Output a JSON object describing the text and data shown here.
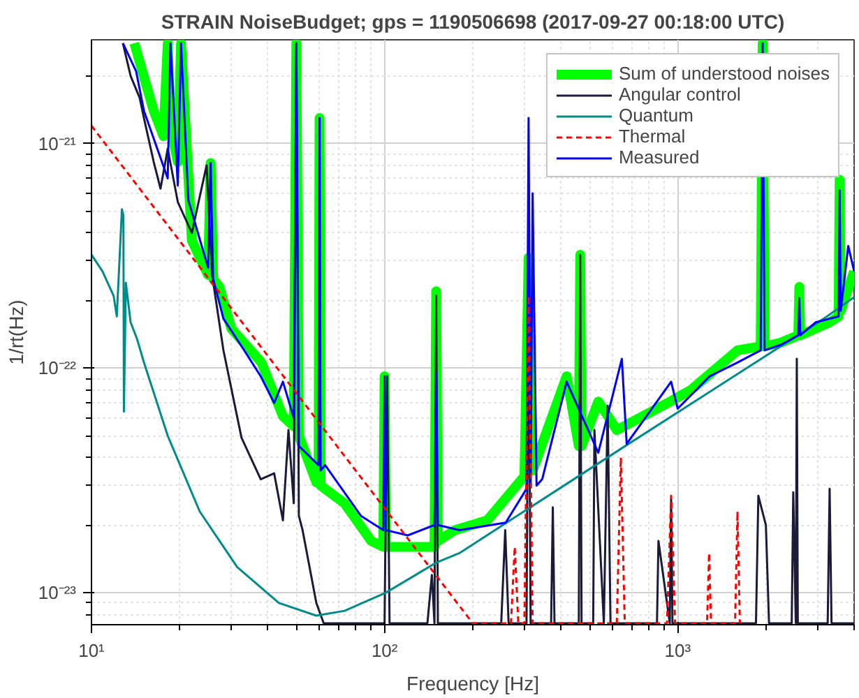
{
  "chart_data": {
    "type": "line",
    "title": "STRAIN NoiseBudget; gps = 1190506698 (2017-09-27 00:18:00 UTC)",
    "xlabel": "Frequency [Hz]",
    "ylabel": "1/rt(Hz)",
    "log": "xy",
    "grid": true,
    "legend": "top right",
    "xlim": [
      10,
      4000
    ],
    "ylim": [
      7.2e-24,
      2.9e-21
    ],
    "xticks": [
      {
        "value": 10,
        "label": "10¹"
      },
      {
        "value": 100,
        "label": "10²"
      },
      {
        "value": 1000,
        "label": "10³"
      }
    ],
    "yticks": [
      {
        "value": 1e-23,
        "label": "10⁻²³"
      },
      {
        "value": 1e-22,
        "label": "10⁻²²"
      },
      {
        "value": 1e-21,
        "label": "10⁻²¹"
      }
    ],
    "series": [
      {
        "name": "Sum of understood noises",
        "color": "#00ff00",
        "x": [
          14.0,
          16.3,
          17.6,
          18.2,
          18.6,
          19.7,
          20.2,
          22,
          25.0,
          25.5,
          26.0,
          27.3,
          30,
          38,
          45,
          49,
          50,
          51,
          58.5,
          59.5,
          60,
          60.5,
          73,
          90,
          99,
          100,
          101,
          120,
          148,
          150,
          152,
          174,
          224,
          300,
          310,
          320,
          418,
          460,
          465,
          470,
          536,
          620,
          925,
          1110,
          1600,
          1920,
          1950,
          1980,
          2250,
          2580,
          2600,
          2620,
          3300,
          3540,
          3570,
          3600,
          4000
        ],
        "values": [
          2.8e-21,
          1.4e-21,
          1.08e-21,
          2.8e-21,
          1.2e-21,
          8.3e-22,
          2.8e-21,
          3.7e-22,
          2.6e-22,
          8.2e-22,
          2.5e-22,
          2.3e-22,
          1.5e-22,
          1.06e-22,
          6.1e-23,
          5.5e-23,
          2.8e-21,
          5e-23,
          3.1e-23,
          3.1e-23,
          1.3e-21,
          3e-23,
          2.5e-23,
          1.7e-23,
          1.6e-23,
          9.2e-23,
          1.6e-23,
          1.6e-23,
          1.6e-23,
          2.2e-22,
          1.7e-23,
          1.9e-23,
          2.1e-23,
          3.3e-23,
          3.1e-22,
          3.5e-23,
          9.2e-23,
          4.5e-23,
          3.2e-22,
          4.5e-23,
          7.1e-23,
          5.3e-23,
          7e-23,
          8e-23,
          1.2e-22,
          1.25e-22,
          2.8e-21,
          1.25e-22,
          1.3e-22,
          1.4e-22,
          2.3e-22,
          1.4e-22,
          1.6e-22,
          1.7e-22,
          6.9e-22,
          1.8e-22,
          2.7e-22
        ]
      },
      {
        "name": "Angular control",
        "color": "#1a1a3a",
        "x": [
          12.8,
          13.6,
          14.6,
          15.1,
          16.3,
          17.2,
          18.2,
          19.7,
          22,
          24.7,
          25.8,
          28.2,
          32.5,
          37.8,
          42,
          45,
          47,
          49,
          50,
          51,
          52.5,
          58.5,
          62,
          100,
          102,
          104,
          140,
          145,
          148,
          150,
          152,
          250,
          258,
          265,
          305,
          310,
          315,
          370,
          375,
          380,
          460,
          465,
          470,
          515,
          520,
          560,
          577,
          590,
          850,
          860,
          940,
          950,
          960,
          1850,
          1885,
          2000,
          2050,
          2450,
          2480,
          2530,
          2550,
          2570,
          3250,
          3300,
          3350,
          4000
        ],
        "values": [
          2.8e-21,
          2e-21,
          1.6e-21,
          1.3e-21,
          8.3e-22,
          6.3e-22,
          9.5e-22,
          5.5e-22,
          4e-22,
          8e-22,
          2.6e-22,
          1.2e-22,
          4.9e-23,
          3.2e-23,
          3.4e-23,
          2.1e-23,
          5.3e-23,
          2.5e-23,
          2.8e-21,
          2.2e-23,
          1.9e-23,
          9e-24,
          7.3e-24,
          7.3e-24,
          9.2e-23,
          7.3e-24,
          7.3e-24,
          1.2e-23,
          7.3e-24,
          2.1e-22,
          7.3e-24,
          7.3e-24,
          1.9e-23,
          7.3e-24,
          7.3e-24,
          2.5e-22,
          7.3e-24,
          7.3e-24,
          2.4e-23,
          7.3e-24,
          7.3e-24,
          3.2e-22,
          7.3e-24,
          7.3e-24,
          5.3e-23,
          7.3e-24,
          6.8e-23,
          7.3e-24,
          7.3e-24,
          1.7e-23,
          7.3e-24,
          2.6e-23,
          7.3e-24,
          7.3e-24,
          2.7e-23,
          2e-23,
          7.3e-24,
          7.3e-24,
          2.8e-23,
          7.3e-24,
          1.1e-22,
          7.3e-24,
          7.3e-24,
          2.9e-23,
          7.3e-24,
          7.3e-24
        ]
      },
      {
        "name": "Quantum",
        "color": "#008b8b",
        "x": [
          10,
          10.9,
          11.9,
          12.2,
          12.7,
          12.85,
          12.9,
          13.1,
          13.6,
          14.3,
          15.1,
          18.2,
          23.4,
          31.4,
          43.6,
          58.5,
          73,
          101,
          150,
          180,
          645,
          3150,
          4000
        ],
        "values": [
          3.2e-22,
          2.7e-22,
          2.1e-22,
          1.7e-22,
          5.1e-22,
          4.8e-22,
          6.4e-23,
          2.4e-22,
          1.6e-22,
          1.35e-22,
          1.06e-22,
          5e-23,
          2.3e-23,
          1.3e-23,
          9e-24,
          7.9e-24,
          8.3e-24,
          1e-23,
          1.36e-23,
          1.5e-23,
          4.4e-23,
          1.66e-22,
          2.07e-22
        ]
      },
      {
        "name": "Thermal",
        "color": "#ff0000",
        "line_style": "dashed",
        "x": [
          10,
          200,
          270,
          278,
          286,
          300,
          310,
          320,
          620,
          640,
          660,
          920,
          950,
          980,
          1260,
          1280,
          1300,
          1570,
          1600,
          1630
        ],
        "values": [
          1.2e-21,
          7.3e-24,
          7.3e-24,
          1.6e-23,
          7.3e-24,
          7.3e-24,
          2.1e-22,
          7.3e-24,
          7.3e-24,
          4e-23,
          7.3e-24,
          7.3e-24,
          2.7e-23,
          7.3e-24,
          7.3e-24,
          1.5e-23,
          7.3e-24,
          7.3e-24,
          2.3e-23,
          7.3e-24
        ]
      },
      {
        "name": "Measured",
        "color": "#0000ff",
        "x": [
          12.8,
          14.2,
          15.1,
          18.2,
          18.6,
          19.7,
          20.2,
          21.4,
          25.0,
          25.5,
          26.0,
          28.2,
          33.2,
          37.8,
          42,
          45,
          49,
          50,
          51,
          59.5,
          60,
          60.5,
          62.7,
          83,
          99,
          100,
          101,
          120,
          148,
          150,
          152,
          180,
          259,
          305,
          310,
          315,
          320,
          330,
          345,
          418,
          536,
          645,
          670,
          950,
          1000,
          1285,
          1600,
          1920,
          1950,
          1980,
          2250,
          2580,
          2600,
          2620,
          2960,
          3540,
          3570,
          3600,
          3820,
          4000
        ],
        "values": [
          2.8e-21,
          2.1e-21,
          1.4e-21,
          7e-22,
          2.8e-21,
          6.5e-22,
          2.8e-21,
          5.6e-22,
          2.8e-22,
          8.2e-22,
          2.5e-22,
          1.66e-22,
          1.2e-22,
          9.2e-23,
          7e-23,
          8.7e-23,
          6e-23,
          2.8e-21,
          4.5e-23,
          3.7e-23,
          1.3e-21,
          3.5e-23,
          3.7e-23,
          2.2e-23,
          1.9e-23,
          9.2e-23,
          1.9e-23,
          1.8e-23,
          2e-23,
          9.5e-23,
          2e-23,
          1.9e-23,
          2.05e-23,
          2.9e-23,
          1.3e-21,
          3e-23,
          6e-22,
          3e-23,
          3.2e-23,
          8.7e-23,
          4.2e-23,
          1.1e-22,
          4.6e-23,
          8.7e-23,
          6.6e-23,
          9.2e-23,
          1.06e-22,
          1.2e-22,
          2.8e-21,
          1.2e-22,
          1.27e-22,
          1.4e-22,
          2.05e-22,
          1.4e-22,
          1.6e-22,
          1.7e-22,
          6.2e-22,
          1.8e-22,
          3.5e-22,
          2.7e-22
        ]
      }
    ]
  }
}
